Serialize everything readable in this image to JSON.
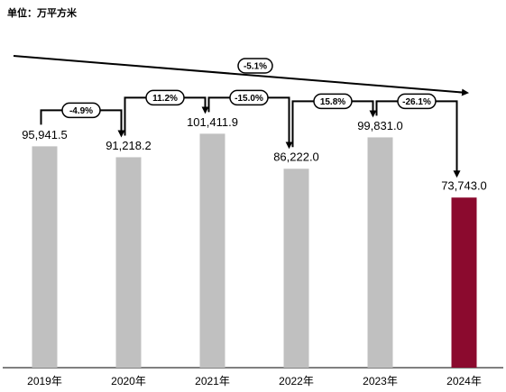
{
  "chart_data": {
    "type": "bar",
    "unit_label": "单位：万平方米",
    "categories": [
      "2019年",
      "2020年",
      "2021年",
      "2022年",
      "2023年",
      "2024年"
    ],
    "values": [
      95941.5,
      91218.2,
      101411.9,
      86222.0,
      99831.0,
      73743.0
    ],
    "value_labels": [
      "95,941.5",
      "91,218.2",
      "101,411.9",
      "86,222.0",
      "99,831.0",
      "73,743.0"
    ],
    "colors": [
      "#c0c0c0",
      "#c0c0c0",
      "#c0c0c0",
      "#c0c0c0",
      "#c0c0c0",
      "#8b0a2e"
    ],
    "ylim": [
      0,
      150000
    ],
    "step_changes": [
      "-4.9%",
      "11.2%",
      "-15.0%",
      "15.8%",
      "-26.1%"
    ],
    "overall_change": "-5.1%"
  }
}
